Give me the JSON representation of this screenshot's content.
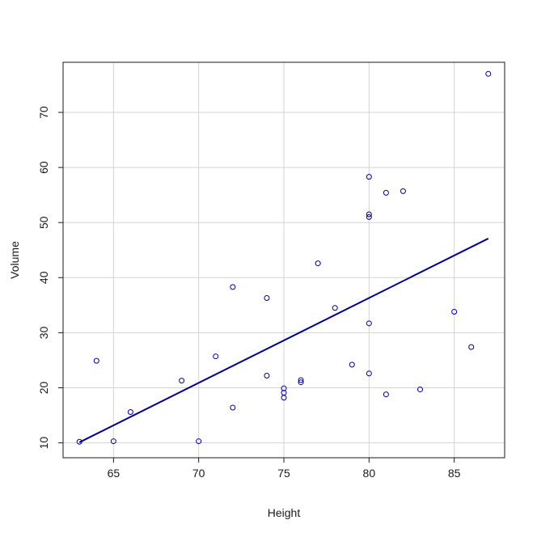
{
  "chart_data": {
    "type": "scatter",
    "title": "",
    "xlabel": "Height",
    "ylabel": "Volume",
    "xlim": [
      62.04,
      87.96
    ],
    "ylim": [
      7.3,
      79.1
    ],
    "x_ticks": [
      65,
      70,
      75,
      80,
      85
    ],
    "y_ticks": [
      10,
      20,
      30,
      40,
      50,
      60,
      70
    ],
    "grid": true,
    "points": {
      "x": [
        70,
        65,
        63,
        72,
        81,
        83,
        66,
        75,
        80,
        75,
        79,
        76,
        76,
        69,
        75,
        74,
        85,
        86,
        71,
        64,
        78,
        80,
        74,
        72,
        77,
        81,
        82,
        80,
        80,
        80,
        87
      ],
      "y": [
        10.3,
        10.3,
        10.2,
        16.4,
        18.8,
        19.7,
        15.6,
        18.2,
        22.6,
        19.9,
        24.2,
        21.0,
        21.4,
        21.3,
        19.1,
        22.2,
        33.8,
        27.4,
        25.7,
        24.9,
        34.5,
        31.7,
        36.3,
        38.3,
        42.6,
        55.4,
        55.7,
        58.3,
        51.5,
        51.0,
        77.0
      ]
    },
    "regression_line": {
      "x": [
        63,
        87
      ],
      "y": [
        10.1,
        47.1
      ]
    },
    "colors": {
      "points": "#00008B",
      "line": "#00008B",
      "grid": "#d3d3d3",
      "axes": "#1a1a1a"
    }
  }
}
